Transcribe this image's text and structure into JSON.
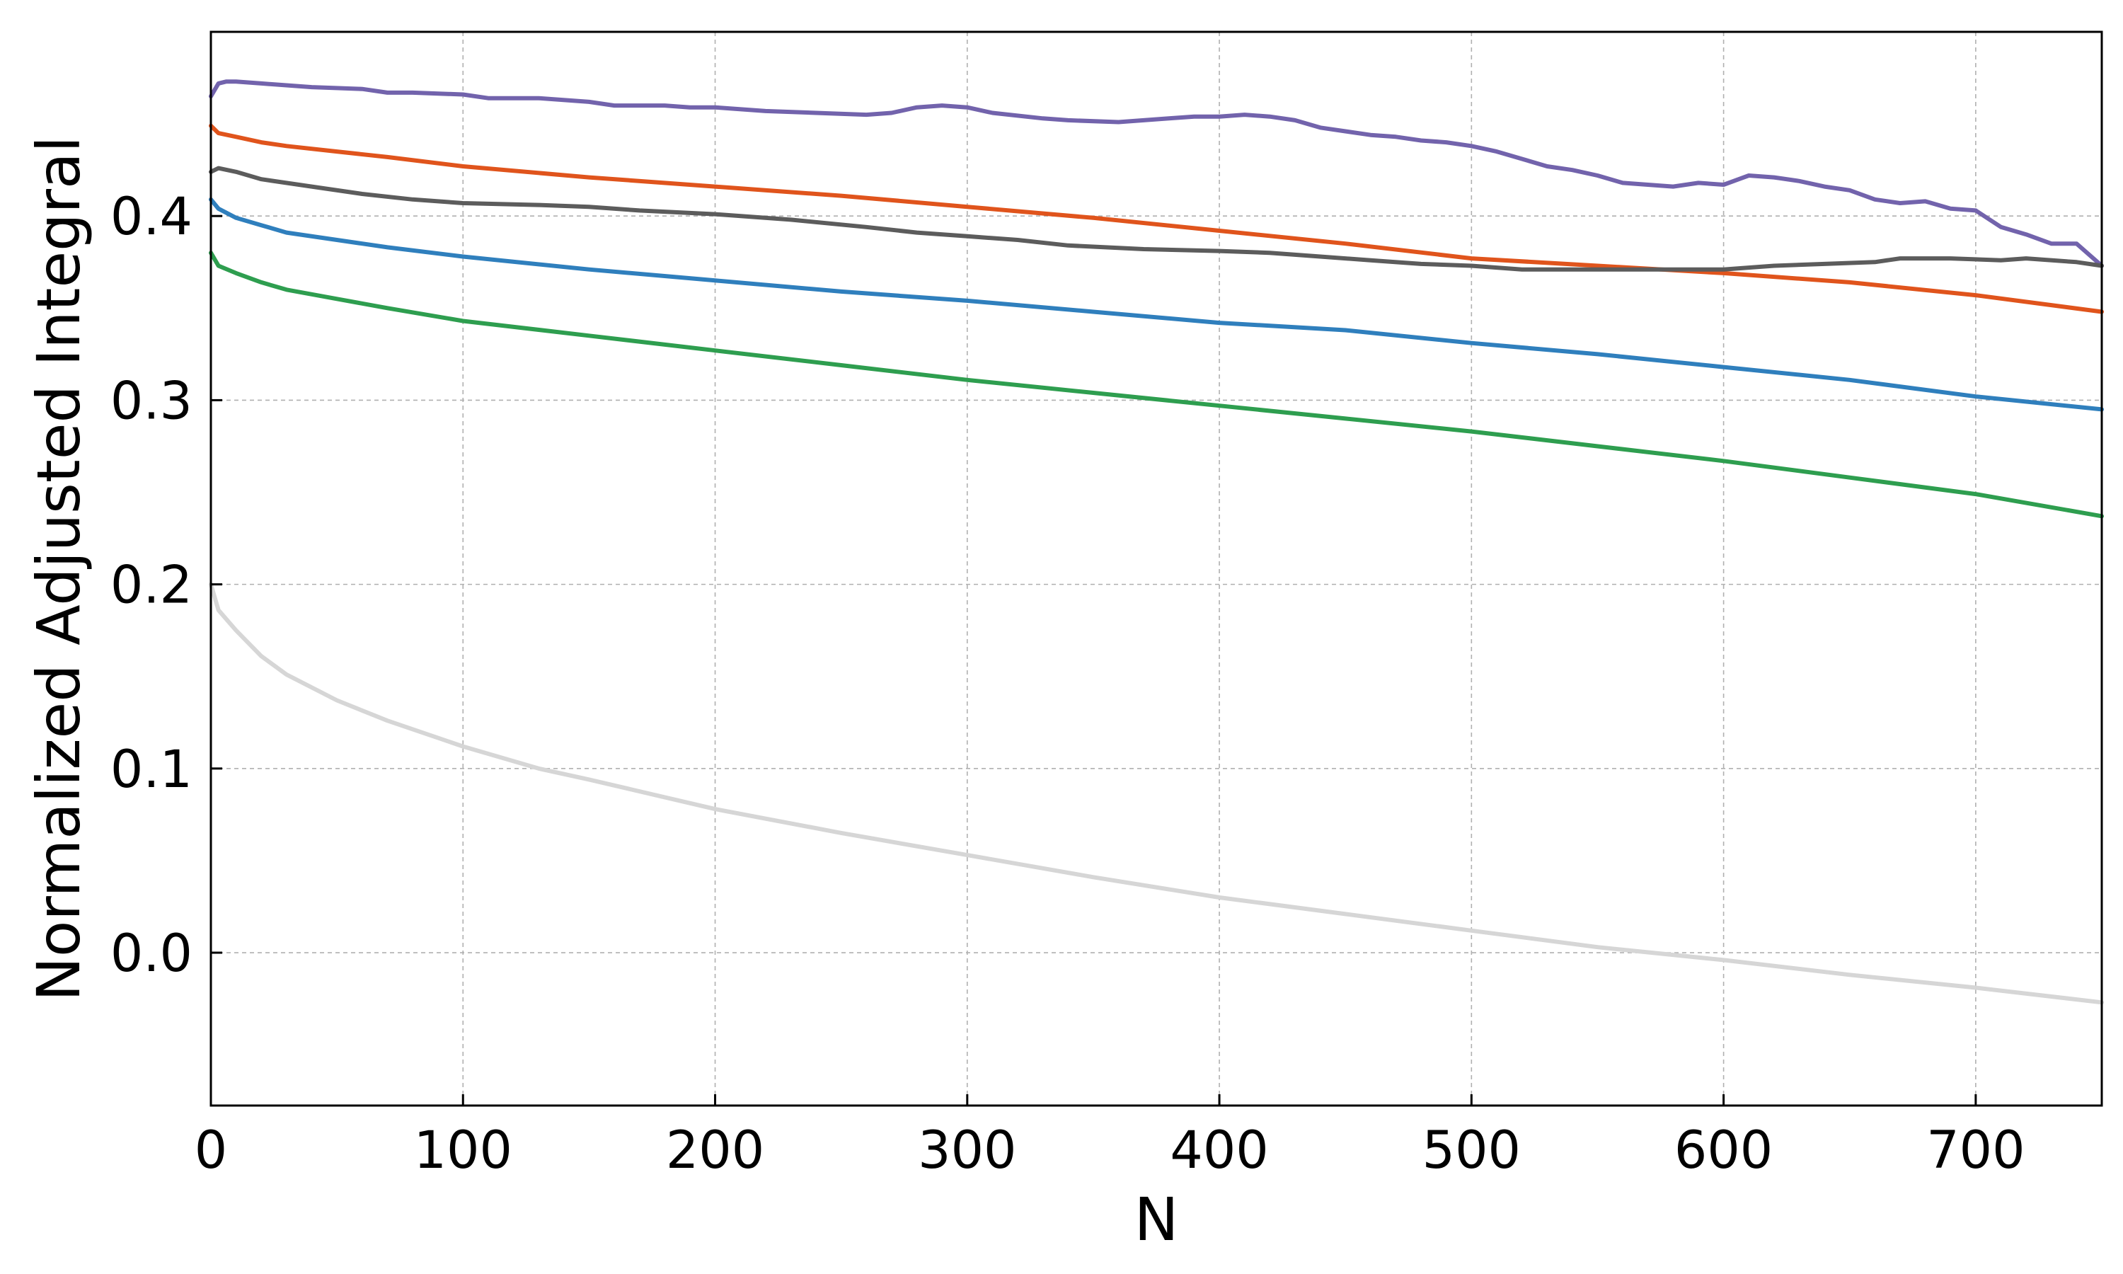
{
  "chart_data": {
    "type": "line",
    "title": "",
    "xlabel": "N",
    "ylabel": "Normalized Adjusted Integral",
    "xlim": [
      0,
      750
    ],
    "ylim": [
      -0.083,
      0.5
    ],
    "xticks": [
      0,
      100,
      200,
      300,
      400,
      500,
      600,
      700
    ],
    "xtick_labels": [
      "0",
      "100",
      "200",
      "300",
      "400",
      "500",
      "600",
      "700"
    ],
    "yticks": [
      0.0,
      0.1,
      0.2,
      0.3,
      0.4
    ],
    "ytick_labels": [
      "0.0",
      "0.1",
      "0.2",
      "0.3",
      "0.4"
    ],
    "grid": true,
    "legend": "none",
    "series": [
      {
        "color": "#7263ac",
        "x": [
          0,
          3,
          6,
          10,
          20,
          40,
          60,
          70,
          80,
          100,
          110,
          130,
          150,
          160,
          180,
          190,
          200,
          220,
          240,
          260,
          270,
          280,
          290,
          300,
          310,
          330,
          340,
          360,
          370,
          380,
          390,
          400,
          410,
          420,
          430,
          440,
          450,
          460,
          470,
          480,
          490,
          500,
          510,
          520,
          530,
          540,
          550,
          560,
          570,
          580,
          590,
          600,
          610,
          620,
          630,
          640,
          650,
          660,
          670,
          680,
          690,
          700,
          710,
          720,
          730,
          740,
          750
        ],
        "y": [
          0.465,
          0.472,
          0.473,
          0.473,
          0.472,
          0.47,
          0.469,
          0.467,
          0.467,
          0.466,
          0.464,
          0.464,
          0.462,
          0.46,
          0.46,
          0.459,
          0.459,
          0.457,
          0.456,
          0.455,
          0.456,
          0.459,
          0.46,
          0.459,
          0.456,
          0.453,
          0.452,
          0.451,
          0.452,
          0.453,
          0.454,
          0.454,
          0.455,
          0.454,
          0.452,
          0.448,
          0.446,
          0.444,
          0.443,
          0.441,
          0.44,
          0.438,
          0.435,
          0.431,
          0.427,
          0.425,
          0.422,
          0.418,
          0.417,
          0.416,
          0.418,
          0.417,
          0.422,
          0.421,
          0.419,
          0.416,
          0.414,
          0.409,
          0.407,
          0.408,
          0.404,
          0.403,
          0.394,
          0.39,
          0.385,
          0.385,
          0.373
        ]
      },
      {
        "color": "#e0541c",
        "x": [
          0,
          3,
          10,
          20,
          30,
          50,
          70,
          100,
          150,
          200,
          250,
          300,
          350,
          400,
          450,
          500,
          550,
          600,
          650,
          700,
          750
        ],
        "y": [
          0.449,
          0.445,
          0.443,
          0.44,
          0.438,
          0.435,
          0.432,
          0.427,
          0.421,
          0.416,
          0.411,
          0.405,
          0.399,
          0.392,
          0.385,
          0.377,
          0.373,
          0.369,
          0.364,
          0.357,
          0.348
        ]
      },
      {
        "color": "#5c5c5c",
        "x": [
          0,
          3,
          10,
          20,
          40,
          60,
          80,
          100,
          130,
          150,
          170,
          200,
          230,
          260,
          280,
          300,
          320,
          340,
          370,
          400,
          420,
          440,
          460,
          480,
          500,
          520,
          540,
          560,
          580,
          600,
          620,
          640,
          660,
          670,
          690,
          710,
          720,
          740,
          750
        ],
        "y": [
          0.424,
          0.426,
          0.424,
          0.42,
          0.416,
          0.412,
          0.409,
          0.407,
          0.406,
          0.405,
          0.403,
          0.401,
          0.398,
          0.394,
          0.391,
          0.389,
          0.387,
          0.384,
          0.382,
          0.381,
          0.38,
          0.378,
          0.376,
          0.374,
          0.373,
          0.371,
          0.371,
          0.371,
          0.371,
          0.371,
          0.373,
          0.374,
          0.375,
          0.377,
          0.377,
          0.376,
          0.377,
          0.375,
          0.373
        ]
      },
      {
        "color": "#2f7fbd",
        "x": [
          0,
          3,
          10,
          20,
          30,
          50,
          70,
          100,
          150,
          200,
          250,
          300,
          350,
          400,
          450,
          500,
          550,
          600,
          650,
          700,
          750
        ],
        "y": [
          0.409,
          0.404,
          0.399,
          0.395,
          0.391,
          0.387,
          0.383,
          0.378,
          0.371,
          0.365,
          0.359,
          0.354,
          0.348,
          0.342,
          0.338,
          0.331,
          0.325,
          0.318,
          0.311,
          0.302,
          0.295
        ]
      },
      {
        "color": "#2e9e4f",
        "x": [
          0,
          3,
          10,
          20,
          30,
          50,
          70,
          100,
          150,
          200,
          250,
          300,
          350,
          400,
          450,
          500,
          550,
          600,
          650,
          700,
          750
        ],
        "y": [
          0.38,
          0.373,
          0.369,
          0.364,
          0.36,
          0.355,
          0.35,
          0.343,
          0.335,
          0.327,
          0.319,
          0.311,
          0.304,
          0.297,
          0.29,
          0.283,
          0.275,
          0.267,
          0.258,
          0.249,
          0.237
        ]
      },
      {
        "color": "#d6d6d6",
        "x": [
          0,
          3,
          10,
          20,
          30,
          50,
          70,
          100,
          130,
          150,
          200,
          250,
          300,
          350,
          400,
          450,
          500,
          550,
          600,
          650,
          700,
          750
        ],
        "y": [
          0.2,
          0.186,
          0.175,
          0.161,
          0.151,
          0.137,
          0.126,
          0.112,
          0.1,
          0.094,
          0.078,
          0.065,
          0.053,
          0.041,
          0.03,
          0.021,
          0.012,
          0.003,
          -0.004,
          -0.012,
          -0.019,
          -0.027
        ]
      }
    ]
  }
}
